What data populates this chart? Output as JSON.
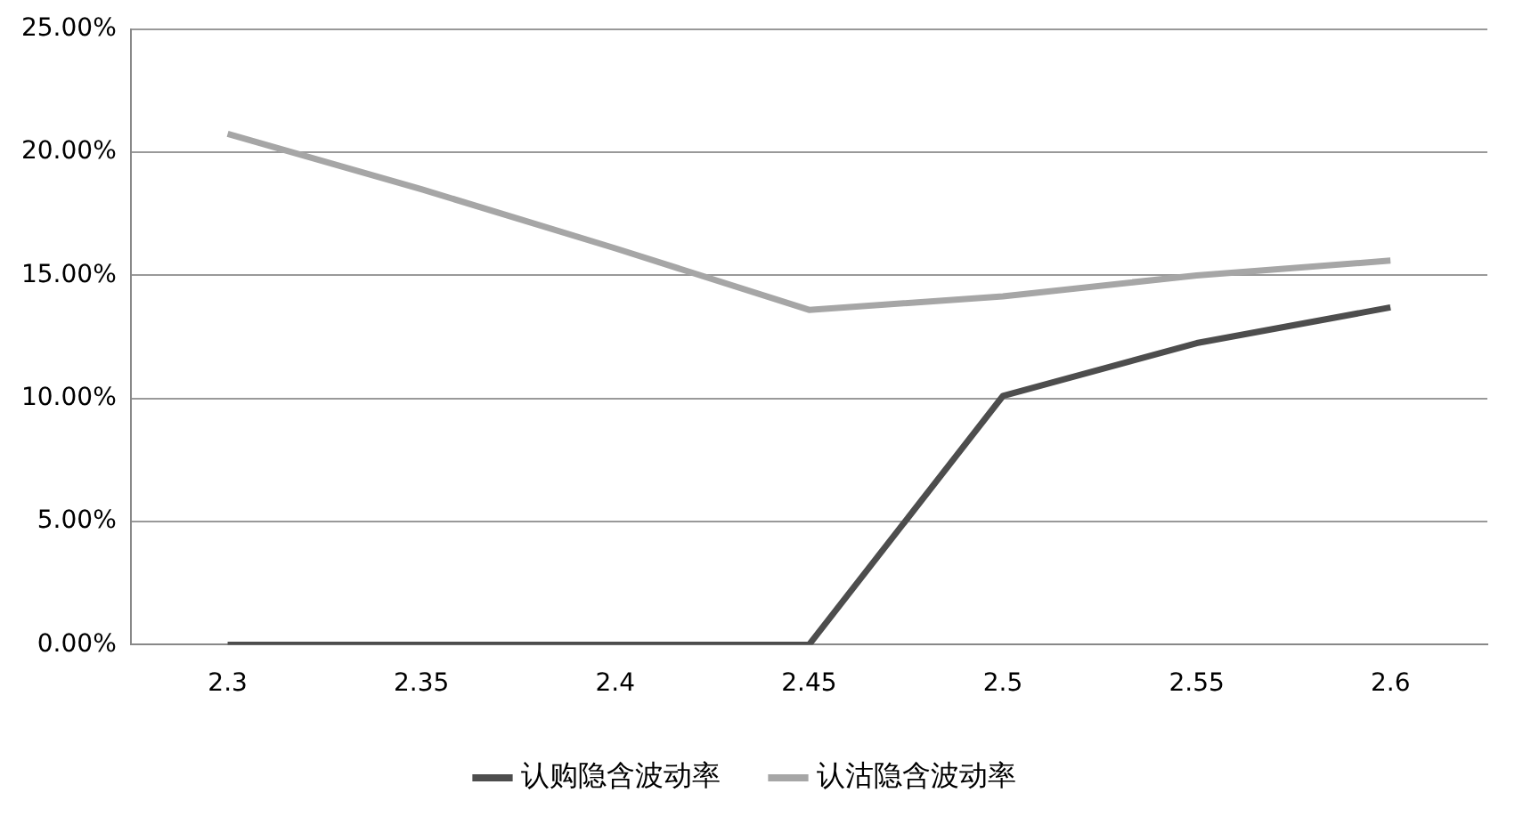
{
  "chart_data": {
    "type": "line",
    "categories": [
      "2.3",
      "2.35",
      "2.4",
      "2.45",
      "2.5",
      "2.55",
      "2.6"
    ],
    "series": [
      {
        "name": "认购隐含波动率",
        "color": "#4d4d4d",
        "values": [
          0,
          0,
          0,
          0,
          10.1,
          12.25,
          13.7
        ]
      },
      {
        "name": "认沽隐含波动率",
        "color": "#a6a6a6",
        "values": [
          20.75,
          18.5,
          16.1,
          13.6,
          14.15,
          15.0,
          15.6
        ]
      }
    ],
    "ylim": [
      0,
      25
    ],
    "yticks": [
      {
        "value": 0,
        "label": "0.00%"
      },
      {
        "value": 5,
        "label": "5.00%"
      },
      {
        "value": 10,
        "label": "10.00%"
      },
      {
        "value": 15,
        "label": "15.00%"
      },
      {
        "value": 20,
        "label": "20.00%"
      },
      {
        "value": 25,
        "label": "25.00%"
      }
    ],
    "grid": "y",
    "legend": "bottom",
    "marker": "none",
    "line_style": "solid"
  }
}
